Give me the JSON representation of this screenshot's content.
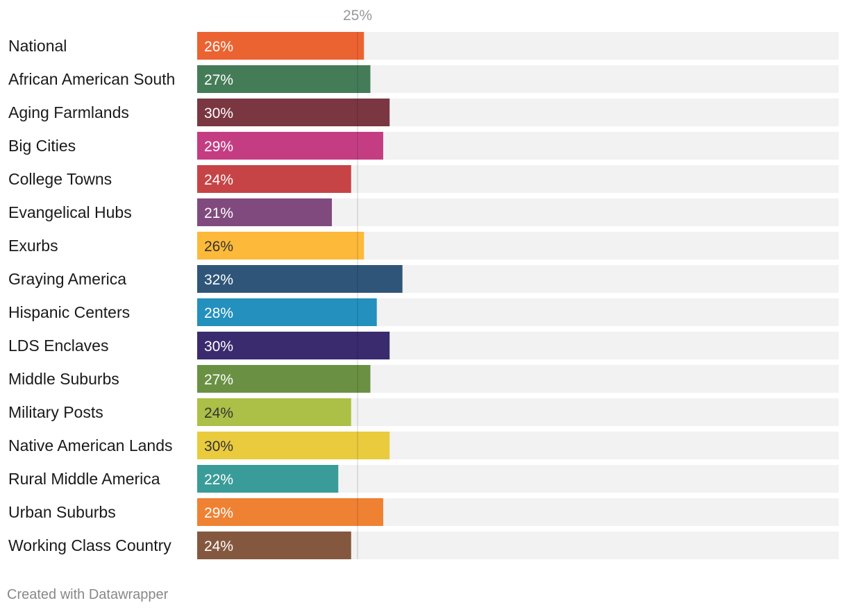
{
  "chart_data": {
    "type": "bar",
    "orientation": "horizontal",
    "categories": [
      "National",
      "African American South",
      "Aging Farmlands",
      "Big Cities",
      "College Towns",
      "Evangelical Hubs",
      "Exurbs",
      "Graying America",
      "Hispanic Centers",
      "LDS Enclaves",
      "Middle Suburbs",
      "Military Posts",
      "Native American Lands",
      "Rural Middle America",
      "Urban Suburbs",
      "Working Class Country"
    ],
    "values": [
      26,
      27,
      30,
      29,
      24,
      21,
      26,
      32,
      28,
      30,
      27,
      24,
      30,
      22,
      29,
      24
    ],
    "value_labels": [
      "26%",
      "27%",
      "30%",
      "29%",
      "24%",
      "21%",
      "26%",
      "32%",
      "28%",
      "30%",
      "27%",
      "24%",
      "30%",
      "22%",
      "29%",
      "24%"
    ],
    "colors": [
      "#ec6332",
      "#457c58",
      "#7a3742",
      "#c43d83",
      "#c64446",
      "#814a7e",
      "#fdb93a",
      "#2f5679",
      "#2390bd",
      "#3a2b6e",
      "#6a9143",
      "#acbf46",
      "#e9cb3d",
      "#3a9c98",
      "#ef8133",
      "#84583f"
    ],
    "label_text_colors": [
      "#ffffff",
      "#ffffff",
      "#ffffff",
      "#ffffff",
      "#ffffff",
      "#ffffff",
      "#333333",
      "#ffffff",
      "#ffffff",
      "#ffffff",
      "#ffffff",
      "#333333",
      "#333333",
      "#ffffff",
      "#ffffff",
      "#ffffff"
    ],
    "xlim": [
      0,
      100
    ],
    "reference_line": {
      "value": 25,
      "label": "25%"
    },
    "background_bar_color": "#f2f2f2",
    "title": "",
    "xlabel": "",
    "ylabel": ""
  },
  "footer": {
    "credit": "Created with Datawrapper"
  }
}
